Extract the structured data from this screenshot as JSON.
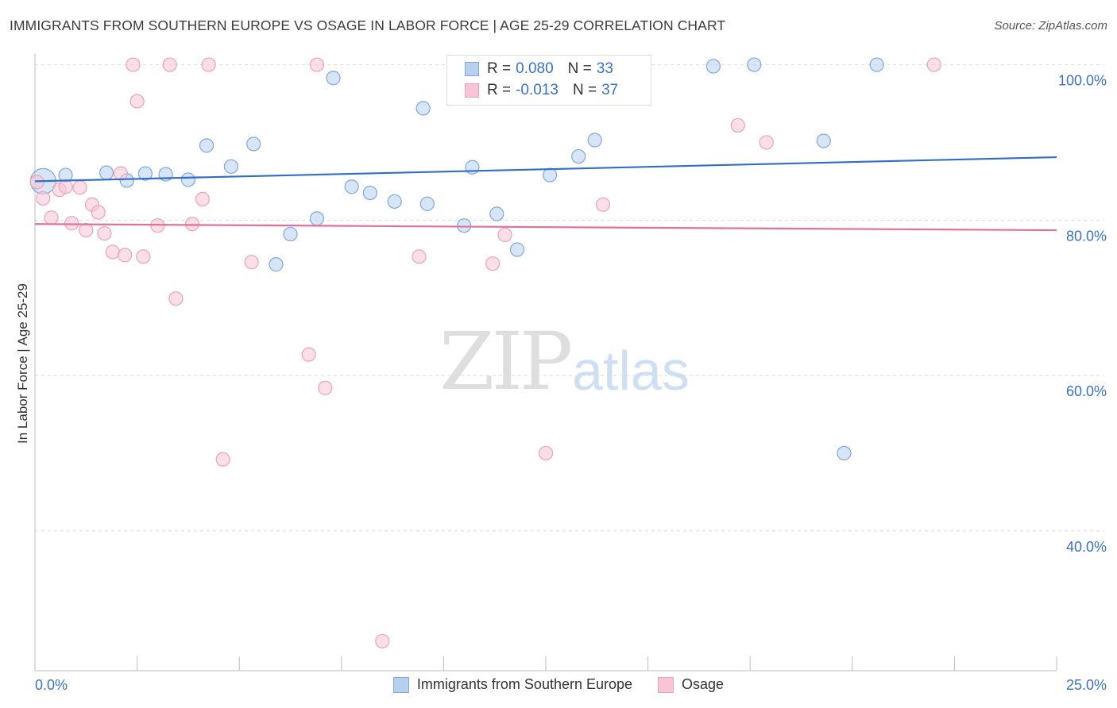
{
  "title": "IMMIGRANTS FROM SOUTHERN EUROPE VS OSAGE IN LABOR FORCE | AGE 25-29 CORRELATION CHART",
  "source": "Source: ZipAtlas.com",
  "watermark": {
    "zip": "ZIP",
    "atlas": "atlas"
  },
  "legend": {
    "r_label": "R =",
    "n_label": "N =",
    "rows": [
      {
        "r": "0.080",
        "n": "33"
      },
      {
        "r": "-0.013",
        "n": "37"
      }
    ]
  },
  "colors": {
    "blue_fill": "#b8d0f0",
    "blue_stroke": "#7fa8dc",
    "blue_line": "#2f6fc8",
    "pink_fill": "#f8c5d6",
    "pink_stroke": "#eca2bb",
    "pink_line": "#e2709a",
    "tick_text": "#3a72c4"
  },
  "chart_data": {
    "type": "scatter",
    "title": "IMMIGRANTS FROM SOUTHERN EUROPE VS OSAGE IN LABOR FORCE | AGE 25-29 CORRELATION CHART",
    "xlabel": "",
    "ylabel": "In Labor Force | Age 25-29",
    "xlim": [
      0,
      25
    ],
    "ylim": [
      22,
      102
    ],
    "x_tick_labels": [
      {
        "v": 0,
        "label": "0.0%"
      },
      {
        "v": 25,
        "label": "25.0%"
      }
    ],
    "y_tick_labels": [
      {
        "v": 100,
        "label": "100.0%"
      },
      {
        "v": 80,
        "label": "80.0%"
      },
      {
        "v": 60,
        "label": "60.0%"
      },
      {
        "v": 40,
        "label": "40.0%"
      }
    ],
    "grid": true,
    "legend_position": "top-center",
    "series": [
      {
        "name": "Immigrants from Southern Europe",
        "color": "blue",
        "trend": [
          [
            0,
            85.0
          ],
          [
            25,
            88.1
          ]
        ],
        "points": [
          [
            0.2,
            85.0,
            "large"
          ],
          [
            0.75,
            85.8
          ],
          [
            1.75,
            86.1
          ],
          [
            2.25,
            85.1
          ],
          [
            2.7,
            86.0
          ],
          [
            3.2,
            85.9
          ],
          [
            3.75,
            85.2
          ],
          [
            4.2,
            89.6
          ],
          [
            4.8,
            86.9
          ],
          [
            5.35,
            89.8
          ],
          [
            5.9,
            74.3
          ],
          [
            6.25,
            78.2
          ],
          [
            6.9,
            80.2
          ],
          [
            7.3,
            98.3
          ],
          [
            7.75,
            84.3
          ],
          [
            8.2,
            83.5
          ],
          [
            8.8,
            82.4
          ],
          [
            9.5,
            94.4
          ],
          [
            9.6,
            82.1
          ],
          [
            10.5,
            79.3
          ],
          [
            10.7,
            86.8
          ],
          [
            11.3,
            80.8
          ],
          [
            11.8,
            76.2
          ],
          [
            12.3,
            100.0
          ],
          [
            12.6,
            85.8
          ],
          [
            13.3,
            88.2
          ],
          [
            13.7,
            90.3
          ],
          [
            16.6,
            99.8
          ],
          [
            17.6,
            100.0
          ],
          [
            19.3,
            90.2
          ],
          [
            19.8,
            50.0
          ],
          [
            20.6,
            100.0
          ],
          [
            12.2,
            100.0
          ]
        ]
      },
      {
        "name": "Osage",
        "color": "pink",
        "trend": [
          [
            0,
            79.5
          ],
          [
            25,
            78.7
          ]
        ],
        "points": [
          [
            0.05,
            84.9
          ],
          [
            0.2,
            82.8
          ],
          [
            0.4,
            80.3
          ],
          [
            0.6,
            83.9
          ],
          [
            0.75,
            84.3
          ],
          [
            0.9,
            79.6
          ],
          [
            1.1,
            84.2
          ],
          [
            1.25,
            78.7
          ],
          [
            1.4,
            82.0
          ],
          [
            1.55,
            81.0
          ],
          [
            1.7,
            78.3
          ],
          [
            1.9,
            75.9
          ],
          [
            2.1,
            86.0
          ],
          [
            2.2,
            75.5
          ],
          [
            2.4,
            100.0
          ],
          [
            2.5,
            95.3
          ],
          [
            2.65,
            75.3
          ],
          [
            3.0,
            79.3
          ],
          [
            3.3,
            100.0
          ],
          [
            3.45,
            69.9
          ],
          [
            3.85,
            79.5
          ],
          [
            4.1,
            82.7
          ],
          [
            4.25,
            100.0
          ],
          [
            4.6,
            49.2
          ],
          [
            5.3,
            74.6
          ],
          [
            6.7,
            62.7
          ],
          [
            6.9,
            100.0
          ],
          [
            7.1,
            58.4
          ],
          [
            8.5,
            25.8
          ],
          [
            9.4,
            75.3
          ],
          [
            11.2,
            74.4
          ],
          [
            11.5,
            78.1
          ],
          [
            12.5,
            50.0
          ],
          [
            13.9,
            82.0
          ],
          [
            17.2,
            92.2
          ],
          [
            17.9,
            90.0
          ],
          [
            22.0,
            100.0
          ]
        ]
      }
    ]
  },
  "bottom_legend": [
    "Immigrants from Southern Europe",
    "Osage"
  ]
}
